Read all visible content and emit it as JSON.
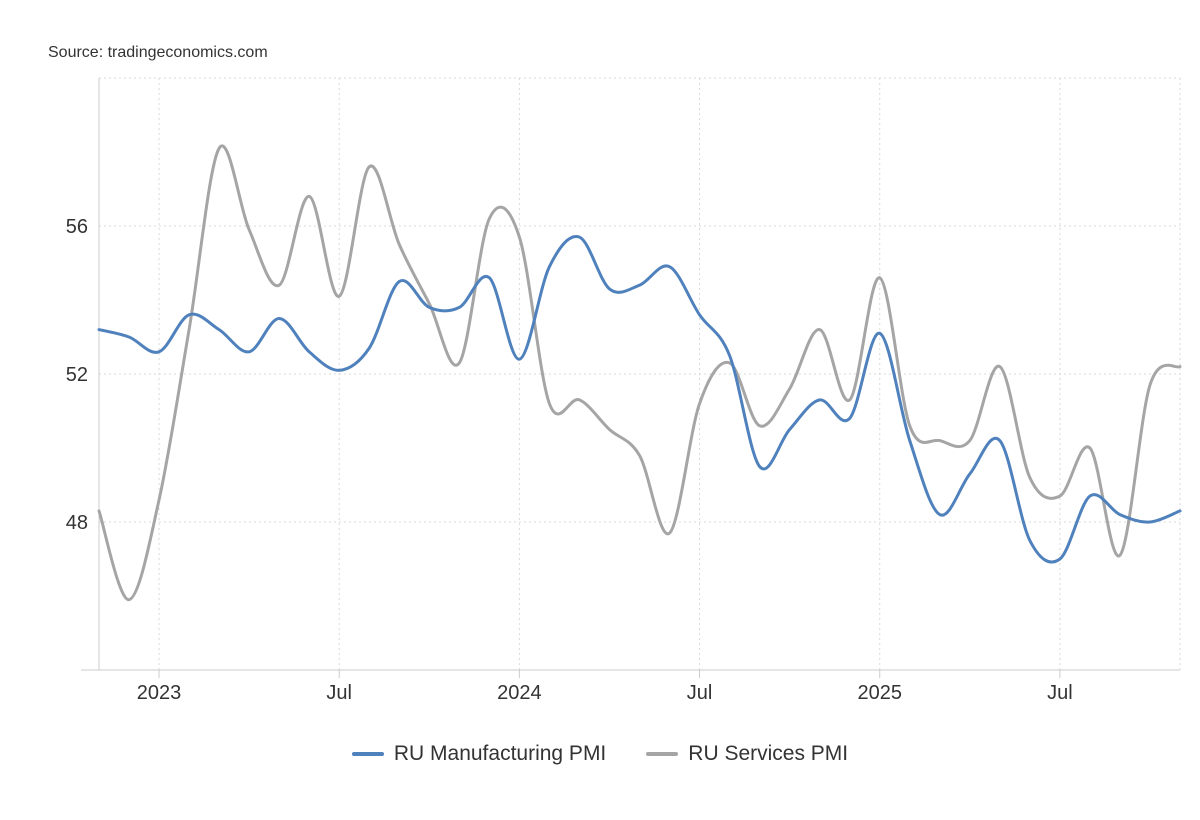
{
  "source": "Source: tradingeconomics.com",
  "chart_data": {
    "type": "line",
    "title": "",
    "xlabel": "",
    "ylabel": "",
    "ylim": [
      44,
      60
    ],
    "yticks": [
      48,
      52,
      56
    ],
    "ytick_labels": [
      "48",
      "52",
      "56"
    ],
    "x_start": "2022-11",
    "x": [
      "2022-11",
      "2022-12",
      "2023-01",
      "2023-02",
      "2023-03",
      "2023-04",
      "2023-05",
      "2023-06",
      "2023-07",
      "2023-08",
      "2023-09",
      "2023-10",
      "2023-11",
      "2023-12",
      "2024-01",
      "2024-02",
      "2024-03",
      "2024-04",
      "2024-05",
      "2024-06",
      "2024-07",
      "2024-08",
      "2024-09",
      "2024-10",
      "2024-11",
      "2024-12",
      "2025-01",
      "2025-02",
      "2025-03",
      "2025-04",
      "2025-05",
      "2025-06",
      "2025-07",
      "2025-08",
      "2025-09",
      "2025-10",
      "2025-11"
    ],
    "xticks": [
      {
        "label": "2023",
        "index": 2
      },
      {
        "label": "Jul",
        "index": 8
      },
      {
        "label": "2024",
        "index": 14
      },
      {
        "label": "Jul",
        "index": 20
      },
      {
        "label": "2025",
        "index": 26
      },
      {
        "label": "Jul",
        "index": 32
      }
    ],
    "grid": true,
    "legend_position": "bottom-center",
    "series": [
      {
        "name": "RU Manufacturing PMI",
        "color": "#4f81bd",
        "values": [
          53.2,
          53.0,
          52.6,
          53.6,
          53.2,
          52.6,
          53.5,
          52.6,
          52.1,
          52.7,
          54.5,
          53.8,
          53.8,
          54.6,
          52.4,
          54.9,
          55.7,
          54.3,
          54.4,
          54.9,
          53.6,
          52.5,
          49.5,
          50.5,
          51.3,
          50.8,
          53.1,
          50.2,
          48.2,
          49.3,
          50.2,
          47.5,
          47.0,
          48.7,
          48.2,
          48.0,
          48.3
        ]
      },
      {
        "name": "RU Services PMI",
        "color": "#a5a5a5",
        "values": [
          48.3,
          45.9,
          48.6,
          53.2,
          58.1,
          55.9,
          54.4,
          56.8,
          54.1,
          57.6,
          55.5,
          53.9,
          52.3,
          56.2,
          55.7,
          51.2,
          51.3,
          50.5,
          49.8,
          47.7,
          51.2,
          52.3,
          50.6,
          51.6,
          53.2,
          51.3,
          54.6,
          50.6,
          50.2,
          50.2,
          52.2,
          49.2,
          48.7,
          50.0,
          47.1,
          51.7,
          52.2
        ]
      }
    ]
  }
}
